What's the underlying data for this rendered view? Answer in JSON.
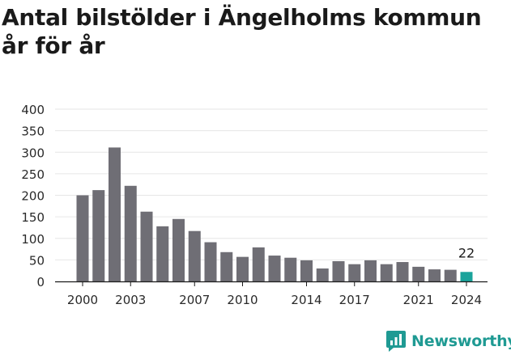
{
  "title": "Antal bilstölder i Ängelholms kommun år för år",
  "brand": "Newsworthy",
  "colors": {
    "bar": "#6f6e75",
    "highlight": "#1aa39b",
    "brand": "#1f9a93",
    "grid": "#e6e6e6"
  },
  "chart_data": {
    "type": "bar",
    "categories": [
      "2000",
      "2001",
      "2002",
      "2003",
      "2004",
      "2005",
      "2006",
      "2007",
      "2008",
      "2009",
      "2010",
      "2011",
      "2012",
      "2013",
      "2014",
      "2015",
      "2016",
      "2017",
      "2018",
      "2019",
      "2020",
      "2021",
      "2022",
      "2023",
      "2024"
    ],
    "values": [
      200,
      212,
      311,
      222,
      162,
      128,
      145,
      117,
      91,
      68,
      57,
      79,
      60,
      55,
      49,
      30,
      47,
      40,
      49,
      40,
      45,
      34,
      28,
      27,
      22
    ],
    "x_tick_labels": [
      "2000",
      "2003",
      "2007",
      "2010",
      "2014",
      "2017",
      "2021",
      "2024"
    ],
    "y_ticks": [
      0,
      50,
      100,
      150,
      200,
      250,
      300,
      350,
      400
    ],
    "ylim": [
      0,
      400
    ],
    "highlight": {
      "category": "2024",
      "label": "22"
    },
    "grid": true,
    "xlabel": "",
    "ylabel": ""
  }
}
